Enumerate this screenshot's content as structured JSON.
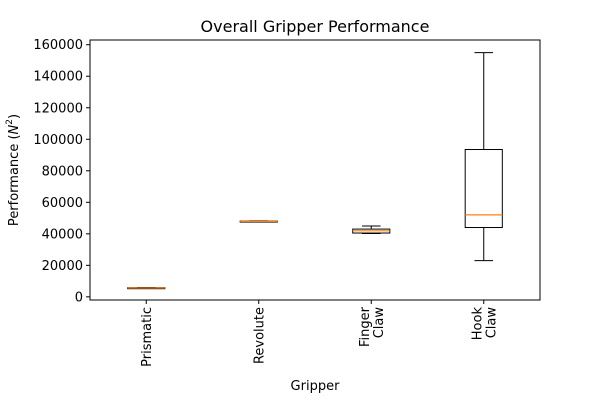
{
  "chart_data": {
    "type": "box",
    "title": "Overall Gripper Performance",
    "xlabel": "Gripper",
    "ylabel_prefix": "Performance (",
    "ylabel_var": "N",
    "ylabel_exp": "2",
    "ylabel_suffix": ")",
    "ylim": [
      -2000,
      163000
    ],
    "yticks": [
      0,
      20000,
      40000,
      60000,
      80000,
      100000,
      120000,
      140000,
      160000
    ],
    "ytick_labels": [
      "0",
      "20000",
      "40000",
      "60000",
      "80000",
      "100000",
      "120000",
      "140000",
      "160000"
    ],
    "categories": [
      {
        "lines": [
          "Prismatic"
        ]
      },
      {
        "lines": [
          "Revolute"
        ]
      },
      {
        "lines": [
          "Finger",
          "Claw"
        ]
      },
      {
        "lines": [
          "Hook",
          "Claw"
        ]
      }
    ],
    "boxes": [
      {
        "whisker_low": 5300,
        "q1": 5400,
        "median": 5600,
        "q3": 5800,
        "whisker_high": 5900
      },
      {
        "whisker_low": 47600,
        "q1": 47700,
        "median": 47900,
        "q3": 48100,
        "whisker_high": 48200
      },
      {
        "whisker_low": 40200,
        "q1": 40500,
        "median": 41900,
        "q3": 43000,
        "whisker_high": 45000
      },
      {
        "whisker_low": 23000,
        "q1": 44000,
        "median": 52000,
        "q3": 93500,
        "whisker_high": 155000
      }
    ],
    "colors": {
      "box": "#000000",
      "median": "#ff7f0e"
    },
    "grid": false,
    "legend": "none"
  }
}
